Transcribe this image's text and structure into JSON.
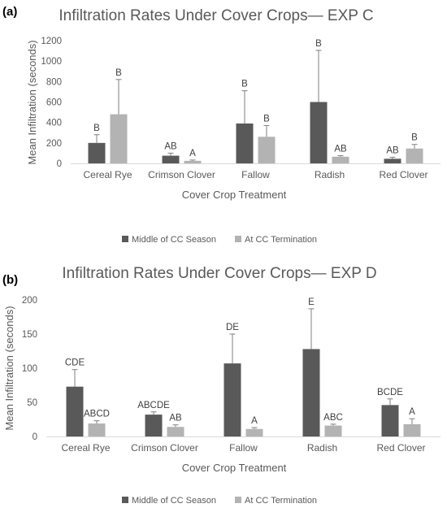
{
  "chart_data": [
    {
      "panel_label": "(a)",
      "type": "bar",
      "title": "Infiltration Rates Under Cover Crops— EXP C",
      "xlabel": "Cover Crop Treatment",
      "ylabel": "Mean Infiltration (seconds)",
      "ylim": [
        0,
        1200
      ],
      "yticks": [
        "0",
        "200",
        "400",
        "600",
        "800",
        "1000",
        "1200"
      ],
      "categories": [
        "Cereal Rye",
        "Crimson Clover",
        "Fallow",
        "Radish",
        "Red Clover"
      ],
      "series": [
        {
          "name": "Middle of CC Season",
          "color": "#595959",
          "values": [
            200,
            75,
            390,
            600,
            45
          ],
          "error": [
            80,
            25,
            320,
            505,
            15
          ],
          "letters": [
            "B",
            "AB",
            "B",
            "B",
            "AB"
          ]
        },
        {
          "name": "At CC Termination",
          "color": "#b3b3b3",
          "values": [
            480,
            25,
            260,
            65,
            145
          ],
          "error": [
            340,
            8,
            110,
            10,
            40
          ],
          "letters": [
            "B",
            "A",
            "B",
            "AB",
            "B"
          ]
        }
      ],
      "legend": "bottom",
      "grid": false
    },
    {
      "panel_label": "(b)",
      "type": "bar",
      "title": "Infiltration Rates Under Cover Crops— EXP D",
      "xlabel": "Cover Crop Treatment",
      "ylabel": "Mean Infiltration (seconds)",
      "ylim": [
        0,
        200
      ],
      "yticks": [
        "0",
        "50",
        "100",
        "150",
        "200"
      ],
      "categories": [
        "Cereal Rye",
        "Crimson Clover",
        "Fallow",
        "Radish",
        "Red Clover"
      ],
      "series": [
        {
          "name": "Middle of CC Season",
          "color": "#595959",
          "values": [
            73,
            32,
            107,
            128,
            46
          ],
          "error": [
            25,
            4,
            43,
            59,
            9
          ],
          "letters": [
            "CDE",
            "ABCDE",
            "DE",
            "E",
            "BCDE"
          ]
        },
        {
          "name": "At CC Termination",
          "color": "#b3b3b3",
          "values": [
            19,
            14,
            11,
            16,
            18
          ],
          "error": [
            4,
            3,
            2,
            2,
            8
          ],
          "letters": [
            "ABCD",
            "AB",
            "A",
            "ABC",
            "A"
          ]
        }
      ],
      "legend": "bottom",
      "grid": false
    }
  ]
}
